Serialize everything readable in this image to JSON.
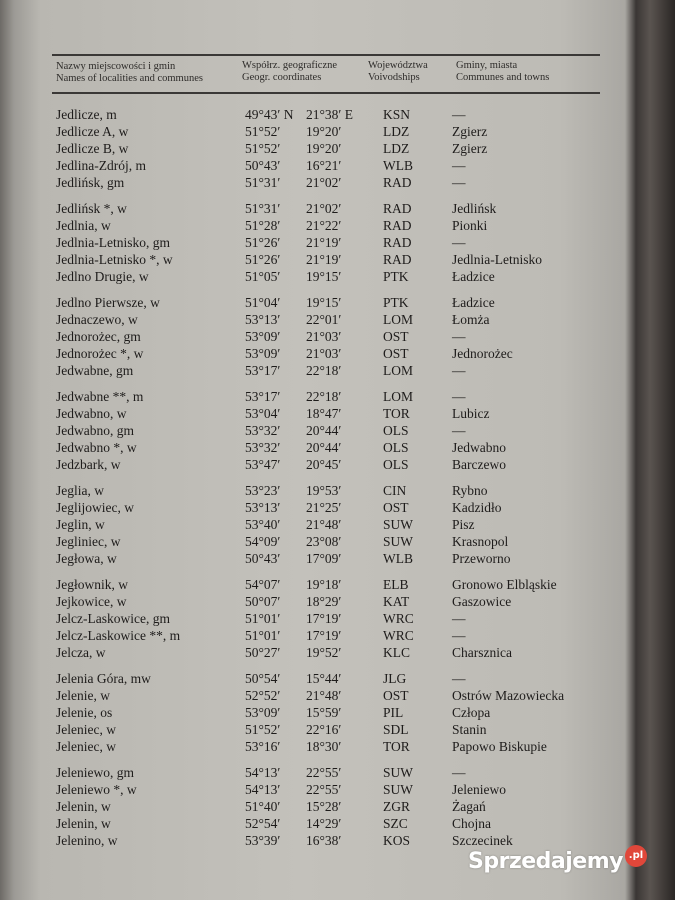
{
  "header": {
    "col_name_pl": "Nazwy miejscowości i gmin",
    "col_name_en": "Names of localities and communes",
    "col_coords_pl": "Współrz. geograficzne",
    "col_coords_en": "Geogr. coordinates",
    "col_voiv_pl": "Województwa",
    "col_voiv_en": "Voivodships",
    "col_comm_pl": "Gminy, miasta",
    "col_comm_en": "Communes and towns"
  },
  "rows": [
    {
      "name": "Jedlicze, m",
      "lat": "49°43′ N",
      "lon": "21°38′ E",
      "voiv": "KSN",
      "commune": "—"
    },
    {
      "name": "Jedlicze A, w",
      "lat": "51°52′",
      "lon": "19°20′",
      "voiv": "LDZ",
      "commune": "Zgierz"
    },
    {
      "name": "Jedlicze B, w",
      "lat": "51°52′",
      "lon": "19°20′",
      "voiv": "LDZ",
      "commune": "Zgierz"
    },
    {
      "name": "Jedlina-Zdrój, m",
      "lat": "50°43′",
      "lon": "16°21′",
      "voiv": "WLB",
      "commune": "—"
    },
    {
      "name": "Jedlińsk, gm",
      "lat": "51°31′",
      "lon": "21°02′",
      "voiv": "RAD",
      "commune": "—"
    },
    {
      "name": "Jedlińsk *, w",
      "lat": "51°31′",
      "lon": "21°02′",
      "voiv": "RAD",
      "commune": "Jedlińsk"
    },
    {
      "name": "Jedlnia, w",
      "lat": "51°28′",
      "lon": "21°22′",
      "voiv": "RAD",
      "commune": "Pionki"
    },
    {
      "name": "Jedlnia-Letnisko, gm",
      "lat": "51°26′",
      "lon": "21°19′",
      "voiv": "RAD",
      "commune": "—"
    },
    {
      "name": "Jedlnia-Letnisko *, w",
      "lat": "51°26′",
      "lon": "21°19′",
      "voiv": "RAD",
      "commune": "Jedlnia-Letnisko"
    },
    {
      "name": "Jedlno Drugie, w",
      "lat": "51°05′",
      "lon": "19°15′",
      "voiv": "PTK",
      "commune": "Ładzice"
    },
    {
      "name": "Jedlno Pierwsze, w",
      "lat": "51°04′",
      "lon": "19°15′",
      "voiv": "PTK",
      "commune": "Ładzice"
    },
    {
      "name": "Jednaczewo, w",
      "lat": "53°13′",
      "lon": "22°01′",
      "voiv": "LOM",
      "commune": "Łomża"
    },
    {
      "name": "Jednorożec, gm",
      "lat": "53°09′",
      "lon": "21°03′",
      "voiv": "OST",
      "commune": "—"
    },
    {
      "name": "Jednorożec *, w",
      "lat": "53°09′",
      "lon": "21°03′",
      "voiv": "OST",
      "commune": "Jednorożec"
    },
    {
      "name": "Jedwabne, gm",
      "lat": "53°17′",
      "lon": "22°18′",
      "voiv": "LOM",
      "commune": "—"
    },
    {
      "name": "Jedwabne **, m",
      "lat": "53°17′",
      "lon": "22°18′",
      "voiv": "LOM",
      "commune": "—"
    },
    {
      "name": "Jedwabno, w",
      "lat": "53°04′",
      "lon": "18°47′",
      "voiv": "TOR",
      "commune": "Lubicz"
    },
    {
      "name": "Jedwabno, gm",
      "lat": "53°32′",
      "lon": "20°44′",
      "voiv": "OLS",
      "commune": "—"
    },
    {
      "name": "Jedwabno *, w",
      "lat": "53°32′",
      "lon": "20°44′",
      "voiv": "OLS",
      "commune": "Jedwabno"
    },
    {
      "name": "Jedzbark, w",
      "lat": "53°47′",
      "lon": "20°45′",
      "voiv": "OLS",
      "commune": "Barczewo"
    },
    {
      "name": "Jeglia, w",
      "lat": "53°23′",
      "lon": "19°53′",
      "voiv": "CIN",
      "commune": "Rybno"
    },
    {
      "name": "Jeglijowiec, w",
      "lat": "53°13′",
      "lon": "21°25′",
      "voiv": "OST",
      "commune": "Kadzidło"
    },
    {
      "name": "Jeglin, w",
      "lat": "53°40′",
      "lon": "21°48′",
      "voiv": "SUW",
      "commune": "Pisz"
    },
    {
      "name": "Jegliniec, w",
      "lat": "54°09′",
      "lon": "23°08′",
      "voiv": "SUW",
      "commune": "Krasnopol"
    },
    {
      "name": "Jegłowa, w",
      "lat": "50°43′",
      "lon": "17°09′",
      "voiv": "WLB",
      "commune": "Przeworno"
    },
    {
      "name": "Jegłownik, w",
      "lat": "54°07′",
      "lon": "19°18′",
      "voiv": "ELB",
      "commune": "Gronowo Elbląskie"
    },
    {
      "name": "Jejkowice, w",
      "lat": "50°07′",
      "lon": "18°29′",
      "voiv": "KAT",
      "commune": "Gaszowice"
    },
    {
      "name": "Jelcz-Laskowice, gm",
      "lat": "51°01′",
      "lon": "17°19′",
      "voiv": "WRC",
      "commune": "—"
    },
    {
      "name": "Jelcz-Laskowice **, m",
      "lat": "51°01′",
      "lon": "17°19′",
      "voiv": "WRC",
      "commune": "—"
    },
    {
      "name": "Jelcza, w",
      "lat": "50°27′",
      "lon": "19°52′",
      "voiv": "KLC",
      "commune": "Charsznica"
    },
    {
      "name": "Jelenia Góra, mw",
      "lat": "50°54′",
      "lon": "15°44′",
      "voiv": "JLG",
      "commune": "—"
    },
    {
      "name": "Jelenie, w",
      "lat": "52°52′",
      "lon": "21°48′",
      "voiv": "OST",
      "commune": "Ostrów Mazowiecka"
    },
    {
      "name": "Jelenie, os",
      "lat": "53°09′",
      "lon": "15°59′",
      "voiv": "PIL",
      "commune": "Człopa"
    },
    {
      "name": "Jeleniec, w",
      "lat": "51°52′",
      "lon": "22°16′",
      "voiv": "SDL",
      "commune": "Stanin"
    },
    {
      "name": "Jeleniec, w",
      "lat": "53°16′",
      "lon": "18°30′",
      "voiv": "TOR",
      "commune": "Papowo Biskupie"
    },
    {
      "name": "Jeleniewo, gm",
      "lat": "54°13′",
      "lon": "22°55′",
      "voiv": "SUW",
      "commune": "—"
    },
    {
      "name": "Jeleniewo *, w",
      "lat": "54°13′",
      "lon": "22°55′",
      "voiv": "SUW",
      "commune": "Jeleniewo"
    },
    {
      "name": "Jelenin, w",
      "lat": "51°40′",
      "lon": "15°28′",
      "voiv": "ZGR",
      "commune": "Żagań"
    },
    {
      "name": "Jelenin, w",
      "lat": "52°54′",
      "lon": "14°29′",
      "voiv": "SZC",
      "commune": "Chojna"
    },
    {
      "name": "Jelenino, w",
      "lat": "53°39′",
      "lon": "16°38′",
      "voiv": "KOS",
      "commune": "Szczecinek"
    }
  ],
  "watermark": {
    "text": "Sprzedajemy",
    "suffix": ".pl",
    "color": "#e0473a"
  }
}
